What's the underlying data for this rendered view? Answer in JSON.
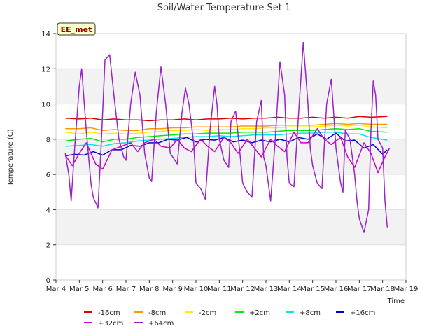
{
  "chart_data": {
    "type": "line",
    "title": "Soil/Water Temperature Set 1",
    "xlabel": "Time",
    "ylabel": "Temperature (C)",
    "annotation": "EE_met",
    "ylim": [
      0,
      14
    ],
    "yticks": [
      "0",
      "2",
      "4",
      "6",
      "8",
      "10",
      "12",
      "14"
    ],
    "xlim": [
      4,
      19
    ],
    "xticks": [
      "Mar 4",
      "Mar 5",
      "Mar 6",
      "Mar 7",
      "Mar 8",
      "Mar 9",
      "Mar 10",
      "Mar 11",
      "Mar 12",
      "Mar 13",
      "Mar 14",
      "Mar 15",
      "Mar 16",
      "Mar 17",
      "Mar 18",
      "Mar 19"
    ],
    "grid": "horizontal bands",
    "legend_position": "bottom",
    "series": [
      {
        "name": "-16cm",
        "color": "#dd0000",
        "x": [
          4.4,
          5,
          5.5,
          6,
          6.5,
          7,
          7.5,
          8,
          8.5,
          9,
          9.5,
          10,
          10.5,
          11,
          11.5,
          12,
          12.5,
          13,
          13.5,
          14,
          14.5,
          15,
          15.5,
          16,
          16.5,
          17,
          17.5,
          18.2
        ],
        "y": [
          9.2,
          9.15,
          9.2,
          9.1,
          9.15,
          9.1,
          9.1,
          9.05,
          9.1,
          9.1,
          9.15,
          9.1,
          9.15,
          9.15,
          9.2,
          9.15,
          9.2,
          9.2,
          9.25,
          9.2,
          9.2,
          9.25,
          9.2,
          9.25,
          9.2,
          9.3,
          9.25,
          9.3
        ]
      },
      {
        "name": "-8cm",
        "color": "#ff9900",
        "x": [
          4.4,
          5,
          5.5,
          6,
          6.5,
          7,
          7.5,
          8,
          8.5,
          9,
          9.5,
          10,
          10.5,
          11,
          11.5,
          12,
          12.5,
          13,
          13.5,
          14,
          14.5,
          15,
          15.5,
          16,
          16.5,
          17,
          17.5,
          18.2
        ],
        "y": [
          8.6,
          8.6,
          8.65,
          8.5,
          8.55,
          8.5,
          8.5,
          8.6,
          8.6,
          8.65,
          8.65,
          8.7,
          8.7,
          8.7,
          8.7,
          8.75,
          8.75,
          8.75,
          8.8,
          8.8,
          8.8,
          8.8,
          8.85,
          8.9,
          8.85,
          8.9,
          8.85,
          8.85
        ]
      },
      {
        "name": "-2cm",
        "color": "#ffee00",
        "x": [
          4.4,
          5,
          5.5,
          6,
          6.5,
          7,
          7.5,
          8,
          8.5,
          9,
          9.5,
          10,
          10.5,
          11,
          11.5,
          12,
          12.5,
          13,
          13.5,
          14,
          14.5,
          15,
          15.5,
          16,
          16.5,
          17,
          17.5,
          18.2
        ],
        "y": [
          8.4,
          8.3,
          8.4,
          8.3,
          8.35,
          8.3,
          8.35,
          8.4,
          8.45,
          8.5,
          8.5,
          8.55,
          8.5,
          8.55,
          8.55,
          8.6,
          8.6,
          8.65,
          8.65,
          8.7,
          8.7,
          8.7,
          8.75,
          8.8,
          8.75,
          8.8,
          8.7,
          8.65
        ]
      },
      {
        "name": "+2cm",
        "color": "#00ee00",
        "x": [
          4.4,
          5,
          5.5,
          6,
          6.5,
          7,
          7.5,
          8,
          8.5,
          9,
          9.5,
          10,
          10.5,
          11,
          11.5,
          12,
          12.5,
          13,
          13.5,
          14,
          14.5,
          15,
          15.5,
          16,
          16.5,
          17,
          17.5,
          18.2
        ],
        "y": [
          7.9,
          8.0,
          8.05,
          7.85,
          8.0,
          8.0,
          8.1,
          8.15,
          8.2,
          8.25,
          8.3,
          8.3,
          8.35,
          8.35,
          8.35,
          8.4,
          8.4,
          8.4,
          8.45,
          8.5,
          8.5,
          8.5,
          8.55,
          8.6,
          8.55,
          8.6,
          8.45,
          8.4
        ]
      },
      {
        "name": "+8cm",
        "color": "#00e5ee",
        "x": [
          4.4,
          5,
          5.5,
          6,
          6.5,
          7,
          7.5,
          8,
          8.5,
          9,
          9.5,
          10,
          10.5,
          11,
          11.5,
          12,
          12.5,
          13,
          13.5,
          14,
          14.5,
          15,
          15.5,
          16,
          16.5,
          17,
          17.5,
          18.2
        ],
        "y": [
          7.6,
          7.65,
          7.7,
          7.6,
          7.75,
          7.8,
          7.9,
          7.95,
          8.0,
          8.05,
          8.1,
          8.15,
          8.15,
          8.2,
          8.15,
          8.2,
          8.25,
          8.25,
          8.25,
          8.3,
          8.35,
          8.35,
          8.4,
          8.4,
          8.3,
          8.3,
          8.1,
          7.95
        ]
      },
      {
        "name": "+16cm",
        "color": "#0000cc",
        "x": [
          4.4,
          4.8,
          5.2,
          5.6,
          6.0,
          6.4,
          6.8,
          7.2,
          7.6,
          8.0,
          8.4,
          8.8,
          9.2,
          9.6,
          10.0,
          10.4,
          10.8,
          11.2,
          11.6,
          12.0,
          12.4,
          12.8,
          13.2,
          13.6,
          14.0,
          14.4,
          14.8,
          15.2,
          15.6,
          16.0,
          16.4,
          16.8,
          17.2,
          17.6,
          18.0,
          18.2
        ],
        "y": [
          7.05,
          7.15,
          7.1,
          7.3,
          7.1,
          7.4,
          7.4,
          7.65,
          7.6,
          7.8,
          7.8,
          8.0,
          7.95,
          8.1,
          7.85,
          8.0,
          7.95,
          8.1,
          7.85,
          7.95,
          7.8,
          7.95,
          7.85,
          8.0,
          7.85,
          8.1,
          8.0,
          8.3,
          8.0,
          8.35,
          7.9,
          7.95,
          7.5,
          7.7,
          7.15,
          7.4
        ]
      },
      {
        "name": "+32cm",
        "color": "#cc00cc",
        "x": [
          4.4,
          4.7,
          5.0,
          5.3,
          5.7,
          6.0,
          6.4,
          6.8,
          7.2,
          7.5,
          7.8,
          8.2,
          8.5,
          8.9,
          9.2,
          9.5,
          9.8,
          10.2,
          10.5,
          10.8,
          11.2,
          11.5,
          11.8,
          12.2,
          12.5,
          12.8,
          13.2,
          13.5,
          13.8,
          14.2,
          14.5,
          14.8,
          15.2,
          15.5,
          15.8,
          16.2,
          16.5,
          16.8,
          17.2,
          17.5,
          17.8,
          18.1,
          18.3
        ],
        "y": [
          7.1,
          6.5,
          7.2,
          7.8,
          6.6,
          6.3,
          7.4,
          7.6,
          7.8,
          7.3,
          7.8,
          8.0,
          7.6,
          7.5,
          8.0,
          7.5,
          7.3,
          8.0,
          7.6,
          7.3,
          8.1,
          7.8,
          7.2,
          8.0,
          7.5,
          7.0,
          8.0,
          7.6,
          7.3,
          8.4,
          7.8,
          7.8,
          8.6,
          8.0,
          7.7,
          8.1,
          7.0,
          6.4,
          7.8,
          7.2,
          6.1,
          7.0,
          7.5
        ]
      },
      {
        "name": "+64cm",
        "color": "#9922cc",
        "x": [
          4.4,
          4.55,
          4.65,
          4.8,
          5.0,
          5.1,
          5.3,
          5.5,
          5.6,
          5.8,
          5.95,
          6.1,
          6.3,
          6.5,
          6.7,
          6.9,
          7.0,
          7.2,
          7.4,
          7.6,
          7.8,
          8.0,
          8.1,
          8.3,
          8.5,
          8.7,
          8.9,
          9.0,
          9.2,
          9.4,
          9.55,
          9.7,
          9.9,
          10.0,
          10.2,
          10.4,
          10.6,
          10.8,
          10.9,
          11.0,
          11.2,
          11.4,
          11.5,
          11.7,
          11.9,
          12.0,
          12.2,
          12.4,
          12.6,
          12.8,
          12.9,
          13.0,
          13.2,
          13.4,
          13.6,
          13.8,
          13.9,
          14.0,
          14.2,
          14.4,
          14.6,
          14.8,
          14.9,
          15.0,
          15.2,
          15.4,
          15.6,
          15.8,
          15.9,
          16.0,
          16.2,
          16.3,
          16.4,
          16.6,
          16.8,
          16.9,
          17.0,
          17.2,
          17.4,
          17.5,
          17.6,
          17.7,
          17.8,
          18.0,
          18.1,
          18.2
        ],
        "y": [
          7.2,
          6.0,
          4.5,
          7.5,
          11.0,
          12.0,
          8.5,
          5.5,
          4.7,
          4.1,
          8.0,
          12.5,
          12.8,
          10.3,
          8.0,
          7.0,
          6.8,
          10.0,
          11.8,
          10.5,
          7.2,
          5.8,
          5.6,
          9.5,
          12.1,
          10.0,
          7.2,
          7.0,
          6.6,
          9.5,
          10.9,
          10.0,
          7.8,
          5.5,
          5.2,
          4.6,
          8.5,
          11.0,
          10.0,
          8.0,
          6.8,
          6.4,
          9.0,
          9.6,
          7.0,
          5.5,
          5.0,
          4.7,
          9.0,
          10.2,
          7.0,
          6.5,
          4.5,
          8.0,
          12.4,
          10.5,
          7.0,
          5.5,
          5.3,
          9.5,
          13.5,
          10.0,
          7.5,
          6.5,
          5.5,
          5.2,
          10.0,
          11.4,
          9.5,
          7.5,
          5.5,
          5.0,
          8.5,
          8.0,
          6.0,
          4.5,
          3.5,
          2.7,
          4.0,
          8.5,
          11.3,
          10.5,
          8.0,
          7.5,
          4.5,
          3.0
        ]
      }
    ]
  }
}
